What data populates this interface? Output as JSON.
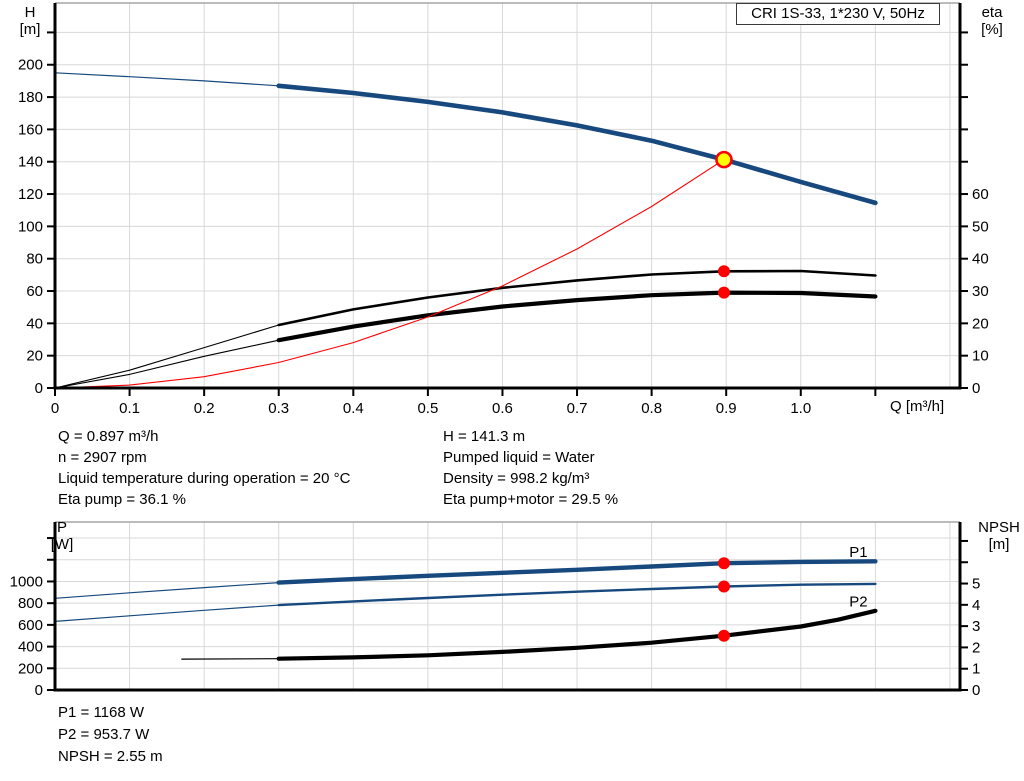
{
  "header": {
    "title_box": "CRI 1S-33, 1*230 V, 50Hz"
  },
  "colors": {
    "blue": "#17497e",
    "red": "#fe0000",
    "black": "#000000",
    "yellow": "#ffff00",
    "grid": "#d8d8d8",
    "frame": "#a6a6a6",
    "label_blue": "#1f5fa6"
  },
  "info_top": {
    "left": [
      "Q = 0.897 m³/h",
      "n = 2907 rpm",
      "Liquid temperature during operation = 20 °C",
      "Eta pump = 36.1 %"
    ],
    "right": [
      "H = 141.3 m",
      "Pumped liquid = Water",
      "Density = 998.2 kg/m³",
      "Eta pump+motor = 29.5 %"
    ]
  },
  "info_bottom": [
    "P1 = 1168 W",
    "P2 = 953.7 W",
    "NPSH = 2.55 m"
  ],
  "chart_data": [
    {
      "id": "top",
      "type": "line",
      "title": "CRI 1S-33, 1*230 V, 50Hz",
      "x_axis": {
        "label": "Q [m³/h]",
        "min": 0,
        "max": 1.2135,
        "tick_step": 0.1,
        "label_max": 1.0,
        "ticks": true
      },
      "left_axis": {
        "label": "H\n[m]",
        "min": 0,
        "max": 238.2,
        "tick_step": 20,
        "label_max": 200
      },
      "right_axis": {
        "label": "eta\n[%]",
        "min": 0,
        "max": 119.1,
        "tick_step": 10,
        "label_max": 60
      },
      "grid": true,
      "series": [
        {
          "name": "head-curve-extension",
          "axis": "left",
          "color": "blue",
          "width": 1.2,
          "points": [
            [
              0,
              195
            ],
            [
              0.1,
              192.6
            ],
            [
              0.2,
              190
            ],
            [
              0.3,
              187
            ]
          ]
        },
        {
          "name": "head-curve",
          "axis": "left",
          "color": "blue",
          "width": 4.6,
          "points": [
            [
              0.3,
              187
            ],
            [
              0.4,
              182.5
            ],
            [
              0.5,
              177
            ],
            [
              0.6,
              170.5
            ],
            [
              0.7,
              162.5
            ],
            [
              0.8,
              153
            ],
            [
              0.897,
              141.3
            ],
            [
              1.0,
              127.5
            ],
            [
              1.1,
              114.5
            ]
          ]
        },
        {
          "name": "eta-pump-curve-extension",
          "axis": "right",
          "color": "black",
          "width": 1.1,
          "points": [
            [
              0,
              0
            ],
            [
              0.1,
              5.5
            ],
            [
              0.2,
              12.5
            ],
            [
              0.3,
              19.5
            ]
          ]
        },
        {
          "name": "eta-pump-curve",
          "axis": "right",
          "color": "black",
          "width": 2.6,
          "points": [
            [
              0.3,
              19.5
            ],
            [
              0.4,
              24.3
            ],
            [
              0.5,
              28
            ],
            [
              0.6,
              31
            ],
            [
              0.7,
              33.3
            ],
            [
              0.8,
              35.1
            ],
            [
              0.897,
              36.1
            ],
            [
              1.0,
              36.2
            ],
            [
              1.1,
              34.8
            ]
          ]
        },
        {
          "name": "eta-pump-motor-curve-extension",
          "axis": "right",
          "color": "black",
          "width": 1.1,
          "points": [
            [
              0,
              0
            ],
            [
              0.1,
              4.2
            ],
            [
              0.2,
              9.8
            ],
            [
              0.3,
              14.8
            ]
          ]
        },
        {
          "name": "eta-pump-motor-curve",
          "axis": "right",
          "color": "black",
          "width": 4.2,
          "points": [
            [
              0.3,
              14.8
            ],
            [
              0.4,
              19
            ],
            [
              0.5,
              22.5
            ],
            [
              0.6,
              25.2
            ],
            [
              0.7,
              27.2
            ],
            [
              0.8,
              28.7
            ],
            [
              0.897,
              29.5
            ],
            [
              1.0,
              29.4
            ],
            [
              1.1,
              28.3
            ]
          ]
        },
        {
          "name": "system-curve",
          "axis": "left",
          "color": "red",
          "width": 1.1,
          "points": [
            [
              0,
              0
            ],
            [
              0.1,
              1.8
            ],
            [
              0.2,
              7
            ],
            [
              0.3,
              15.8
            ],
            [
              0.4,
              28.1
            ],
            [
              0.5,
              43.9
            ],
            [
              0.6,
              63.2
            ],
            [
              0.7,
              86
            ],
            [
              0.8,
              112.3
            ],
            [
              0.897,
              141.3
            ]
          ]
        }
      ],
      "markers": [
        {
          "name": "duty-point",
          "axis": "left",
          "x": 0.897,
          "y": 141.3,
          "r": 7.5,
          "fill": "yellow",
          "stroke": "red",
          "sw": 2.6,
          "interactable": true
        },
        {
          "name": "eta-pump-point",
          "axis": "right",
          "x": 0.897,
          "y": 36.1,
          "r": 6,
          "fill": "red",
          "interactable": false
        },
        {
          "name": "eta-pump-motor-point",
          "axis": "right",
          "x": 0.897,
          "y": 29.5,
          "r": 6,
          "fill": "red",
          "interactable": false
        }
      ],
      "annotations": []
    },
    {
      "id": "bottom",
      "type": "line",
      "title": "",
      "x_axis": {
        "label": "Q [m³/h]",
        "min": 0,
        "max": 1.2135,
        "tick_step": 0.1,
        "label_max": -1,
        "ticks": false
      },
      "left_axis": {
        "label": "P\n[W]",
        "min": 0,
        "max": 1548,
        "tick_step": 200,
        "label_max": 1000
      },
      "right_axis": {
        "label": "NPSH\n[m]",
        "min": 0,
        "max": 7.89,
        "tick_step": 1,
        "label_max": 5
      },
      "grid": true,
      "series": [
        {
          "name": "p1-curve-extension",
          "axis": "left",
          "color": "blue",
          "width": 1.2,
          "points": [
            [
              0,
              845
            ],
            [
              0.1,
              896
            ],
            [
              0.2,
              944
            ],
            [
              0.3,
              990
            ]
          ]
        },
        {
          "name": "p1-curve",
          "axis": "left",
          "color": "blue",
          "width": 4.4,
          "points": [
            [
              0.3,
              990
            ],
            [
              0.4,
              1022
            ],
            [
              0.5,
              1052
            ],
            [
              0.6,
              1080
            ],
            [
              0.7,
              1108
            ],
            [
              0.8,
              1138
            ],
            [
              0.897,
              1168
            ],
            [
              1.0,
              1180
            ],
            [
              1.1,
              1186
            ]
          ]
        },
        {
          "name": "p2-curve-extension",
          "axis": "left",
          "color": "blue",
          "width": 1.2,
          "points": [
            [
              0,
              632
            ],
            [
              0.1,
              684
            ],
            [
              0.2,
              734
            ],
            [
              0.3,
              782
            ]
          ]
        },
        {
          "name": "p2-curve",
          "axis": "left",
          "color": "blue",
          "width": 2.4,
          "points": [
            [
              0.3,
              782
            ],
            [
              0.4,
              816
            ],
            [
              0.5,
              848
            ],
            [
              0.6,
              878
            ],
            [
              0.7,
              906
            ],
            [
              0.8,
              931
            ],
            [
              0.897,
              953.7
            ],
            [
              1.0,
              970
            ],
            [
              1.1,
              978
            ]
          ]
        },
        {
          "name": "npsh-curve-extension",
          "axis": "right",
          "color": "black",
          "width": 1.2,
          "points": [
            [
              0.17,
              1.45
            ],
            [
              0.3,
              1.47
            ]
          ]
        },
        {
          "name": "npsh-curve",
          "axis": "right",
          "color": "black",
          "width": 4.2,
          "points": [
            [
              0.3,
              1.47
            ],
            [
              0.4,
              1.53
            ],
            [
              0.5,
              1.63
            ],
            [
              0.6,
              1.79
            ],
            [
              0.7,
              1.98
            ],
            [
              0.8,
              2.22
            ],
            [
              0.897,
              2.55
            ],
            [
              1.0,
              2.98
            ],
            [
              1.05,
              3.3
            ],
            [
              1.1,
              3.72
            ]
          ]
        }
      ],
      "markers": [
        {
          "name": "p1-point",
          "axis": "left",
          "x": 0.897,
          "y": 1168,
          "r": 6,
          "fill": "red",
          "interactable": false
        },
        {
          "name": "p2-point",
          "axis": "left",
          "x": 0.897,
          "y": 953.7,
          "r": 6,
          "fill": "red",
          "interactable": false
        },
        {
          "name": "npsh-point",
          "axis": "right",
          "x": 0.897,
          "y": 2.55,
          "r": 6,
          "fill": "red",
          "interactable": false
        }
      ],
      "annotations": [
        {
          "name": "p1-curve-label",
          "text": "P1",
          "axis": "left",
          "x": 1.065,
          "y": 1225,
          "color": "label_blue"
        },
        {
          "name": "p2-curve-label",
          "text": "P2",
          "axis": "left",
          "x": 1.065,
          "y": 770,
          "color": "label_blue"
        }
      ]
    }
  ]
}
